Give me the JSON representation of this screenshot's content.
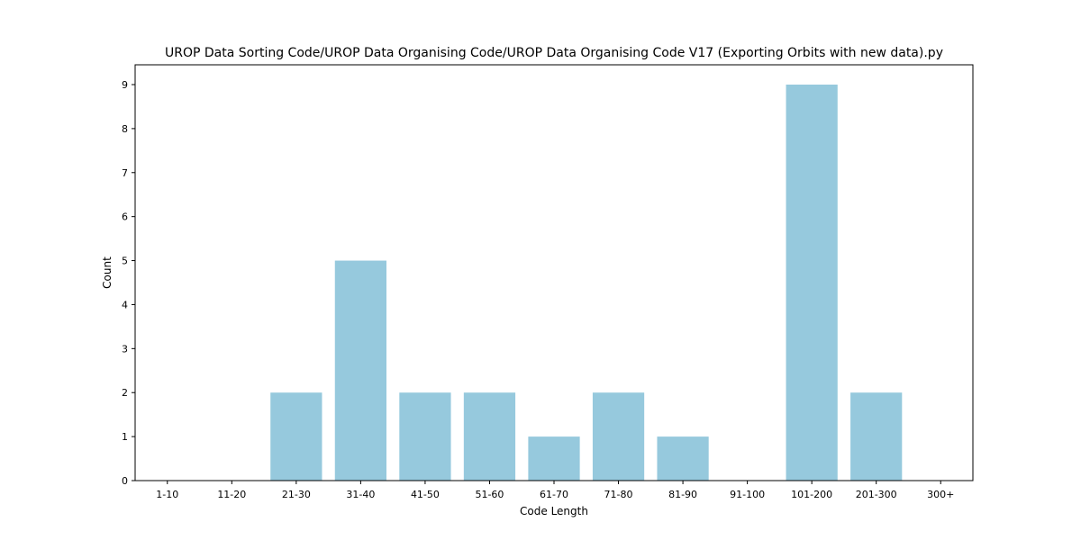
{
  "chart_data": {
    "type": "bar",
    "title": "UROP Data Sorting Code/UROP Data Organising Code/UROP Data Organising Code V17 (Exporting Orbits with new data).py",
    "xlabel": "Code Length",
    "ylabel": "Count",
    "categories": [
      "1-10",
      "11-20",
      "21-30",
      "31-40",
      "41-50",
      "51-60",
      "61-70",
      "71-80",
      "81-90",
      "91-100",
      "101-200",
      "201-300",
      "300+"
    ],
    "values": [
      0,
      0,
      2,
      5,
      2,
      2,
      1,
      2,
      1,
      0,
      9,
      2,
      0
    ],
    "ylim": [
      0,
      9.45
    ],
    "yticks": [
      0,
      1,
      2,
      3,
      4,
      5,
      6,
      7,
      8,
      9
    ],
    "grid": false,
    "bar_color": "#96c9dd"
  }
}
